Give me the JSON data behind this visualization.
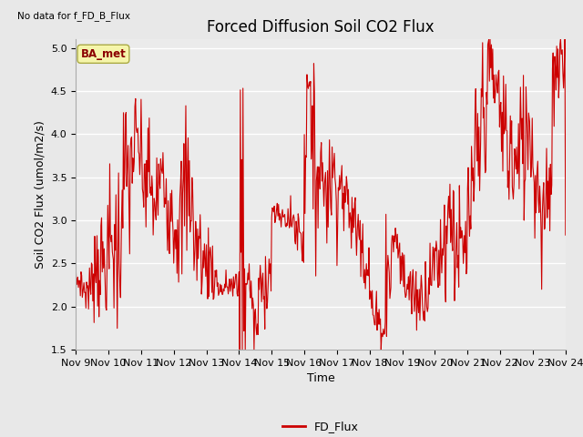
{
  "title": "Forced Diffusion Soil CO2 Flux",
  "ylabel": "Soil CO2 Flux (umol/m2/s)",
  "xlabel": "Time",
  "no_data_text": "No data for f_FD_B_Flux",
  "ba_label": "BA_met",
  "legend_label": "FD_Flux",
  "ylim": [
    1.5,
    5.1
  ],
  "yticks": [
    1.5,
    2.0,
    2.5,
    3.0,
    3.5,
    4.0,
    4.5,
    5.0
  ],
  "xtick_labels": [
    "Nov 9",
    "Nov 10",
    "Nov 11",
    "Nov 12",
    "Nov 13",
    "Nov 14",
    "Nov 15",
    "Nov 16",
    "Nov 17",
    "Nov 18",
    "Nov 19",
    "Nov 20",
    "Nov 21",
    "Nov 22",
    "Nov 23",
    "Nov 24"
  ],
  "line_color": "#cc0000",
  "bg_color": "#e8e8e8",
  "axes_bg": "#ebebeb",
  "grid_color": "#ffffff",
  "title_fontsize": 12,
  "label_fontsize": 9,
  "tick_fontsize": 8,
  "x_values": [
    9.0,
    9.02,
    9.04,
    9.06,
    9.08,
    9.1,
    9.12,
    9.14,
    9.16,
    9.18,
    9.2,
    9.22,
    9.25,
    9.27,
    9.29,
    9.31,
    9.33,
    9.35,
    9.37,
    9.39,
    9.42,
    9.44,
    9.46,
    9.48,
    9.5,
    9.52,
    9.54,
    9.56,
    9.58,
    9.6,
    9.62,
    9.65,
    9.67,
    9.69,
    9.71,
    9.73,
    9.75,
    9.77,
    9.79,
    9.81,
    9.83,
    9.85,
    9.87,
    9.9,
    9.92,
    9.94,
    9.96,
    9.98,
    10.0,
    10.02,
    10.04,
    10.06,
    10.08,
    10.1,
    10.12,
    10.15,
    10.17,
    10.19,
    10.21,
    10.23,
    10.25,
    10.27,
    10.29,
    10.31,
    10.33,
    10.35,
    10.37,
    10.4,
    10.42,
    10.44,
    10.46,
    10.48,
    10.5,
    10.52,
    10.54,
    10.56,
    10.58,
    10.6,
    10.62,
    10.65,
    10.67,
    10.69,
    10.71,
    10.73,
    10.75,
    10.77,
    10.79,
    10.81,
    10.83,
    10.85,
    10.87,
    10.9,
    10.92,
    10.94,
    10.96,
    10.98,
    11.0,
    11.02,
    11.04,
    11.06,
    11.08,
    11.1,
    11.12,
    11.15,
    11.17,
    11.19,
    11.21,
    11.23,
    11.25,
    11.27,
    11.29,
    11.31,
    11.33,
    11.35,
    11.37,
    11.4,
    11.42,
    11.44,
    11.46,
    11.48,
    11.5,
    11.52,
    11.54,
    11.56,
    11.58,
    11.6,
    11.62,
    11.65,
    11.67,
    11.69,
    11.71,
    11.73,
    11.75,
    11.77,
    11.79,
    11.81,
    11.83,
    11.85,
    11.87,
    11.9,
    11.92,
    11.94,
    11.96,
    11.98,
    12.0,
    12.02,
    12.04,
    12.06,
    12.08,
    12.1,
    12.12,
    12.15,
    12.17,
    12.19,
    12.21,
    12.23,
    12.25,
    12.27,
    12.29,
    12.31,
    12.33,
    12.35,
    12.37,
    12.4,
    12.42,
    12.44,
    12.46,
    12.48,
    12.5,
    12.52,
    12.54,
    12.56,
    12.58,
    12.6,
    12.62,
    12.65,
    12.67,
    12.69,
    12.71,
    12.73,
    12.75,
    12.77,
    12.79,
    12.81,
    12.83,
    12.85,
    12.87,
    12.9,
    12.92,
    12.94,
    12.96,
    12.98,
    13.0,
    13.02,
    13.04,
    13.06,
    13.08,
    13.1,
    13.12,
    13.15,
    13.17,
    13.19,
    13.21,
    13.23,
    13.25,
    13.27,
    13.29,
    13.31,
    13.33,
    13.35,
    13.37,
    13.4,
    13.42,
    13.44,
    13.46,
    13.48,
    13.5,
    13.52,
    13.54,
    13.56,
    13.58,
    13.6,
    13.62,
    13.65,
    13.67,
    13.69,
    13.71,
    13.73,
    13.75,
    13.77,
    13.79,
    13.81,
    13.83,
    13.85,
    13.87,
    13.9,
    13.92,
    13.94,
    13.96,
    13.98,
    14.0,
    14.02,
    14.04,
    14.06,
    14.08,
    14.1,
    14.12,
    14.15,
    14.17,
    14.19,
    14.21,
    14.23,
    14.25,
    14.27,
    14.29,
    14.31,
    14.33,
    14.35,
    14.37,
    14.4,
    14.42,
    14.44,
    14.46,
    14.48,
    14.5,
    14.52,
    14.54,
    14.56,
    14.58,
    14.6,
    14.62,
    14.65,
    14.67,
    14.69,
    14.71,
    14.73,
    14.75,
    14.77,
    14.79,
    14.81,
    14.83,
    14.85,
    14.87,
    14.9,
    14.92,
    14.94,
    14.96,
    14.98,
    15.0,
    15.02,
    15.04,
    15.06,
    15.08,
    15.1,
    15.12,
    15.15,
    15.17,
    15.19,
    15.21,
    15.23,
    15.25,
    15.27,
    15.29,
    15.31,
    15.33,
    15.35,
    15.37,
    15.4,
    15.42,
    15.44,
    15.46,
    15.48,
    15.5,
    15.52,
    15.54,
    15.56,
    15.58,
    15.6,
    15.62,
    15.65,
    15.67,
    15.69,
    15.71,
    15.73,
    15.75,
    15.77,
    15.79,
    15.81,
    15.83,
    15.85,
    15.87,
    15.9,
    15.92,
    15.94,
    15.96,
    15.98,
    16.0,
    16.02,
    16.04,
    16.06,
    16.08,
    16.1,
    16.12,
    16.15,
    16.17,
    16.19,
    16.21,
    16.23,
    16.25,
    16.27,
    16.29,
    16.31,
    16.33,
    16.35,
    16.37,
    16.4,
    16.42,
    16.44,
    16.46,
    16.48,
    16.5,
    16.52,
    16.54,
    16.56,
    16.58,
    16.6,
    16.62,
    16.65,
    16.67,
    16.69,
    16.71,
    16.73,
    16.75,
    16.77,
    16.79,
    16.81,
    16.83,
    16.85,
    16.87,
    16.9,
    16.92,
    16.94,
    16.96,
    16.98,
    17.0,
    17.02,
    17.04,
    17.06,
    17.08,
    17.1,
    17.12,
    17.15,
    17.17,
    17.19,
    17.21,
    17.23,
    17.25,
    17.27,
    17.29,
    17.31,
    17.33,
    17.35,
    17.37,
    17.4,
    17.42,
    17.44,
    17.46,
    17.48,
    17.5,
    17.52,
    17.54,
    17.56,
    17.58,
    17.6,
    17.62,
    17.65,
    17.67,
    17.69,
    17.71,
    17.73,
    17.75,
    17.77,
    17.79,
    17.81,
    17.83,
    17.85,
    17.87,
    17.9,
    17.92,
    17.94,
    17.96,
    17.98,
    18.0,
    18.02,
    18.04,
    18.06,
    18.08,
    18.1,
    18.12,
    18.15,
    18.17,
    18.19,
    18.21,
    18.23,
    18.25,
    18.27,
    18.29,
    18.31,
    18.33,
    18.35,
    18.37,
    18.4,
    18.42,
    18.44,
    18.46,
    18.48,
    18.5,
    18.52,
    18.54,
    18.56,
    18.58,
    18.6,
    18.62,
    18.65,
    18.67,
    18.69,
    18.71,
    18.73,
    18.75,
    18.77,
    18.79,
    18.81,
    18.83,
    18.85,
    18.87,
    18.9,
    18.92,
    18.94,
    18.96,
    18.98,
    19.0,
    19.02,
    19.04,
    19.06,
    19.08,
    19.1,
    19.12,
    19.15,
    19.17,
    19.19,
    19.21,
    19.23,
    19.25,
    19.27,
    19.29,
    19.31,
    19.33,
    19.35,
    19.37,
    19.4,
    19.42,
    19.44,
    19.46,
    19.48,
    19.5,
    19.52,
    19.54,
    19.56,
    19.58,
    19.6,
    19.62,
    19.65,
    19.67,
    19.69,
    19.71,
    19.73,
    19.75,
    19.77,
    19.79,
    19.81,
    19.83,
    19.85,
    19.87,
    19.9,
    19.92,
    19.94,
    19.96,
    19.98,
    20.0,
    20.02,
    20.04,
    20.06,
    20.08,
    20.1,
    20.12,
    20.15,
    20.17,
    20.19,
    20.21,
    20.23,
    20.25,
    20.27,
    20.29,
    20.31,
    20.33,
    20.35,
    20.37,
    20.4,
    20.42,
    20.44,
    20.46,
    20.48,
    20.5,
    20.52,
    20.54,
    20.56,
    20.58,
    20.6,
    20.62,
    20.65,
    20.67,
    20.69,
    20.71,
    20.73,
    20.75,
    20.77,
    20.79,
    20.81,
    20.83,
    20.85,
    20.87,
    20.9,
    20.92,
    20.94,
    20.96,
    20.98,
    21.0,
    21.02,
    21.04,
    21.06,
    21.08,
    21.1,
    21.12,
    21.15,
    21.17,
    21.19,
    21.21,
    21.23,
    21.25,
    21.27,
    21.29,
    21.31,
    21.33,
    21.35,
    21.37,
    21.4,
    21.42,
    21.44,
    21.46,
    21.48,
    21.5,
    21.52,
    21.54,
    21.56,
    21.58,
    21.6,
    21.62,
    21.65,
    21.67,
    21.69,
    21.71,
    21.73,
    21.75,
    21.77,
    21.79,
    21.81,
    21.83,
    21.85,
    21.87,
    21.9,
    21.92,
    21.94,
    21.96,
    21.98,
    22.0,
    22.02,
    22.04,
    22.06,
    22.08,
    22.1,
    22.12,
    22.15,
    22.17,
    22.19,
    22.21,
    22.23,
    22.25,
    22.27,
    22.29,
    22.31,
    22.33,
    22.35,
    22.37,
    22.4,
    22.42,
    22.44,
    22.46,
    22.48,
    22.5,
    22.52,
    22.54,
    22.56,
    22.58,
    22.6,
    22.62,
    22.65,
    22.67,
    22.69,
    22.71,
    22.73,
    22.75,
    22.77,
    22.79,
    22.81,
    22.83,
    22.85,
    22.87,
    22.9,
    22.92,
    22.94,
    22.96,
    22.98,
    23.0,
    23.02,
    23.04,
    23.06,
    23.08,
    23.1,
    23.12,
    23.15,
    23.17,
    23.19,
    23.21,
    23.23,
    23.25,
    23.27,
    23.29,
    23.31,
    23.33,
    23.35,
    23.37,
    23.4,
    23.42,
    23.44,
    23.46,
    23.48,
    23.5,
    23.52,
    23.54,
    23.56,
    23.58,
    23.6,
    23.62,
    23.65,
    23.67,
    23.69,
    23.71,
    23.73,
    23.75,
    23.77,
    23.79,
    23.81,
    23.83,
    23.85,
    23.87,
    23.9,
    23.92,
    23.94,
    23.96,
    23.98,
    24.0
  ]
}
